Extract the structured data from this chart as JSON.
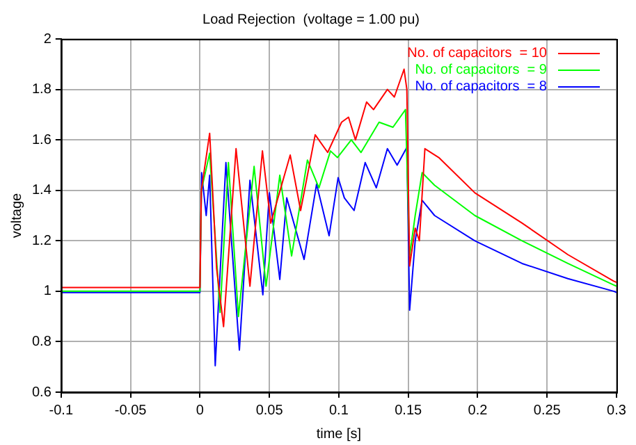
{
  "chart_data": {
    "type": "line",
    "title": "Load Rejection  (voltage = 1.00 pu)",
    "xlabel": "time [s]",
    "ylabel": "voltage",
    "xlim": [
      -0.1,
      0.3
    ],
    "xticks": [
      -0.1,
      -0.05,
      0,
      0.05,
      0.1,
      0.15,
      0.2,
      0.25,
      0.3
    ],
    "ylim": [
      0.6,
      2
    ],
    "yticks": [
      0.6,
      0.8,
      1,
      1.2,
      1.4,
      1.6,
      1.8,
      2
    ],
    "grid": true,
    "legend": "top right",
    "marker": "none",
    "line_style": "solid",
    "series": [
      {
        "name": "No. of capacitors  = 10",
        "color": "#ff0000",
        "x": [
          -0.1,
          0,
          0.001,
          0.007,
          0.012,
          0.017,
          0.026,
          0.036,
          0.045,
          0.051,
          0.065,
          0.0725,
          0.083,
          0.092,
          0.102,
          0.107,
          0.112,
          0.12,
          0.125,
          0.135,
          0.14,
          0.147,
          0.149,
          0.151,
          0.155,
          0.158,
          0.162,
          0.172,
          0.198,
          0.232,
          0.265,
          0.298,
          0.3
        ],
        "values": [
          1.015,
          1.015,
          1.4,
          1.626,
          1.09,
          0.86,
          1.565,
          1.02,
          1.556,
          1.27,
          1.54,
          1.32,
          1.62,
          1.55,
          1.67,
          1.69,
          1.6,
          1.75,
          1.72,
          1.8,
          1.77,
          1.88,
          1.8,
          1.1,
          1.25,
          1.2,
          1.565,
          1.53,
          1.39,
          1.27,
          1.145,
          1.04,
          1.035
        ]
      },
      {
        "name": "No. of capacitors  = 9",
        "color": "#00ff00",
        "x": [
          -0.1,
          0,
          0.001,
          0.007,
          0.0145,
          0.0205,
          0.0277,
          0.039,
          0.0476,
          0.0575,
          0.066,
          0.0774,
          0.0857,
          0.094,
          0.099,
          0.109,
          0.116,
          0.129,
          0.139,
          0.148,
          0.151,
          0.155,
          0.16,
          0.169,
          0.198,
          0.232,
          0.265,
          0.298,
          0.3
        ],
        "values": [
          1,
          1,
          1.4,
          1.547,
          0.916,
          1.51,
          0.9,
          1.495,
          1.02,
          1.46,
          1.14,
          1.52,
          1.41,
          1.556,
          1.53,
          1.6,
          1.55,
          1.67,
          1.65,
          1.72,
          1.14,
          1.3,
          1.47,
          1.42,
          1.3,
          1.2,
          1.11,
          1.025,
          1.02
        ]
      },
      {
        "name": "No. of capacitors  = 8",
        "color": "#0000ff",
        "x": [
          -0.1,
          0,
          0.0012,
          0.0045,
          0.007,
          0.011,
          0.0187,
          0.0227,
          0.0284,
          0.036,
          0.0453,
          0.05,
          0.0575,
          0.0625,
          0.075,
          0.084,
          0.093,
          0.0995,
          0.104,
          0.111,
          0.119,
          0.127,
          0.135,
          0.142,
          0.149,
          0.151,
          0.155,
          0.16,
          0.169,
          0.198,
          0.232,
          0.265,
          0.298,
          0.3
        ],
        "values": [
          0.995,
          0.995,
          1.47,
          1.3,
          1.46,
          0.705,
          1.51,
          1.2,
          0.767,
          1.44,
          0.986,
          1.39,
          1.047,
          1.37,
          1.126,
          1.425,
          1.22,
          1.45,
          1.37,
          1.32,
          1.51,
          1.41,
          1.565,
          1.5,
          1.57,
          0.925,
          1.2,
          1.36,
          1.3,
          1.2,
          1.11,
          1.05,
          1,
          0.995
        ]
      }
    ]
  }
}
